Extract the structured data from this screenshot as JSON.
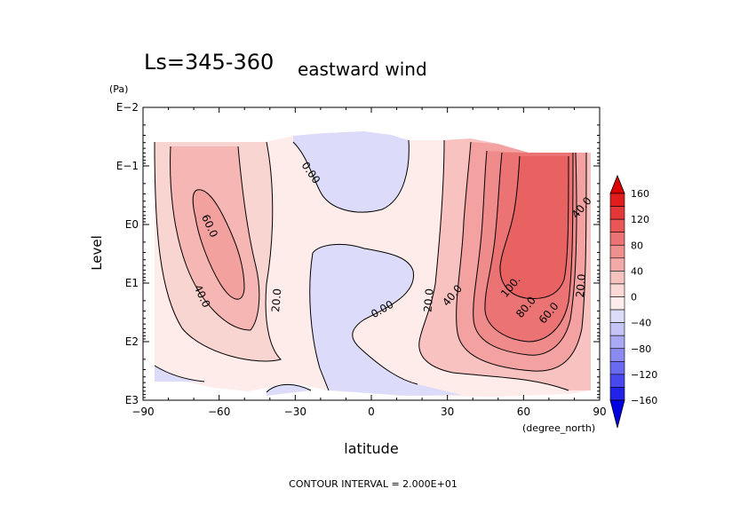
{
  "chart_data": {
    "type": "contour",
    "title_ls": "Ls=345-360",
    "title_var": "eastward wind",
    "xlabel": "latitude",
    "x_units": "(degree_north)",
    "ylabel": "Level",
    "y_units": "(Pa)",
    "x_ticks": [
      "−90",
      "−60",
      "−30",
      "0",
      "30",
      "60",
      "90"
    ],
    "x_tick_values": [
      -90,
      -60,
      -30,
      0,
      30,
      60,
      90
    ],
    "y_ticks": [
      "E−2",
      "E−1",
      "E0",
      "E1",
      "E2",
      "E3"
    ],
    "y_tick_exponents": [
      -2,
      -1,
      0,
      1,
      2,
      3
    ],
    "xlim": [
      -90,
      90
    ],
    "ylim_log10": [
      -2,
      3
    ],
    "contour_interval_text": "CONTOUR INTERVAL = 2.000E+01",
    "contour_labels": [
      {
        "text": "0.00",
        "lat": -25,
        "log_p": -0.85
      },
      {
        "text": "60.0",
        "lat": -65,
        "log_p": 0.05
      },
      {
        "text": "40.0",
        "lat": -68,
        "log_p": 1.25
      },
      {
        "text": "20.0",
        "lat": -36,
        "log_p": 1.3
      },
      {
        "text": "0.00",
        "lat": 5,
        "log_p": 1.5
      },
      {
        "text": "20.0",
        "lat": 24,
        "log_p": 1.3
      },
      {
        "text": "40.0",
        "lat": 33,
        "log_p": 1.25
      },
      {
        "text": "100.",
        "lat": 56,
        "log_p": 1.1
      },
      {
        "text": "80.0",
        "lat": 62,
        "log_p": 1.45
      },
      {
        "text": "60.0",
        "lat": 71,
        "log_p": 1.55
      },
      {
        "text": "40.0",
        "lat": 84,
        "log_p": -0.25
      },
      {
        "text": "20.0",
        "lat": 84,
        "log_p": 1.05
      }
    ],
    "colorbar": {
      "labels": [
        "160",
        "120",
        "80",
        "40",
        "0",
        "−40",
        "−80",
        "−120",
        "−160"
      ],
      "levels": [
        -180,
        -160,
        -140,
        -120,
        -100,
        -80,
        -60,
        -40,
        -20,
        0,
        20,
        40,
        60,
        80,
        100,
        120,
        140,
        160,
        180
      ],
      "colors": [
        "#0000e0",
        "#2222e8",
        "#4848ee",
        "#6a6af0",
        "#8a8af2",
        "#a8a8f4",
        "#c4c4f6",
        "#dcdcfa",
        "#fdecea",
        "#fad8d6",
        "#f6c2c0",
        "#f3a9a8",
        "#ef8f8e",
        "#eb7373",
        "#e85656",
        "#e43838",
        "#e01c1c",
        "#dd0000"
      ]
    },
    "regions": {
      "east_jet_max": 100,
      "west_jet_max": 60,
      "easterly_min": -20
    }
  }
}
